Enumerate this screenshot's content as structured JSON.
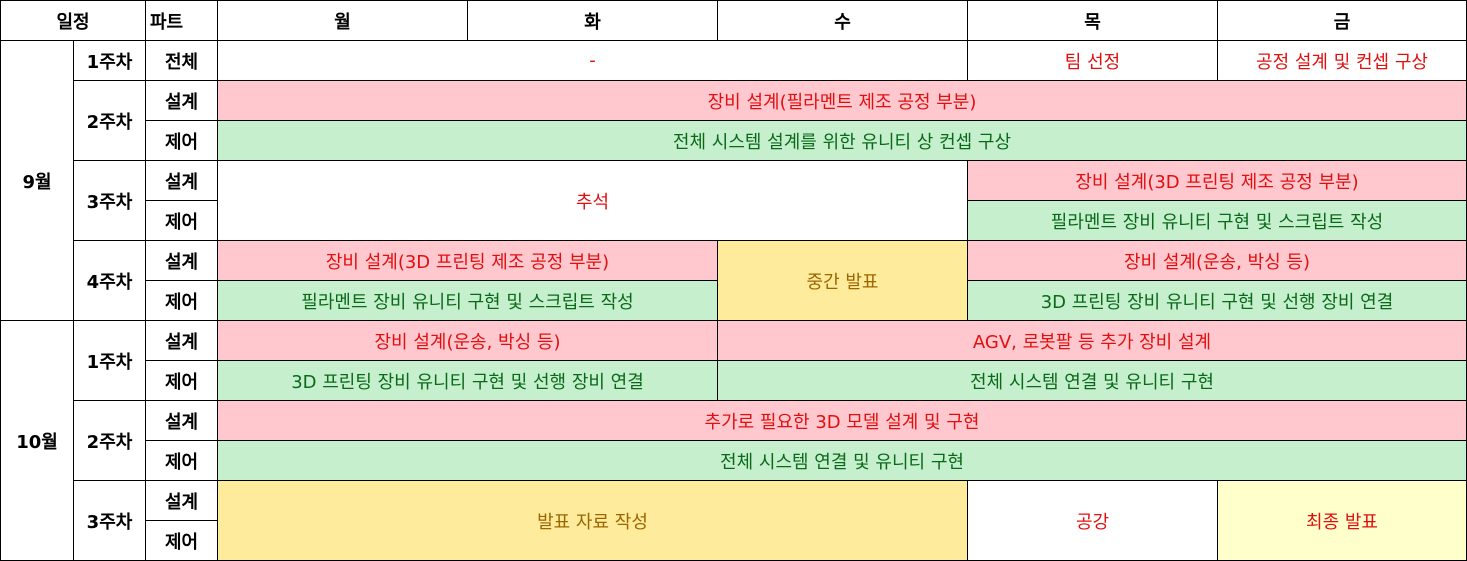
{
  "header": {
    "schedule": "일정",
    "part": "파트",
    "days": [
      "월",
      "화",
      "수",
      "목",
      "금"
    ]
  },
  "months": {
    "sep": "9월",
    "oct": "10월"
  },
  "weeks": {
    "w1": "1주차",
    "w2": "2주차",
    "w3": "3주차",
    "w4": "4주차"
  },
  "parts": {
    "all": "전체",
    "design": "설계",
    "control": "제어"
  },
  "sep": {
    "w1_dash": "-",
    "w1_thu": "팀 선정",
    "w1_fri": "공정 설계 및 컨셉 구상",
    "w2_design": "장비 설계(필라멘트 제조 공정 부분)",
    "w2_control": "전체 시스템 설계를 위한 유니티 상 컨셉 구상",
    "w3_holiday": "추석",
    "w3_design": "장비 설계(3D 프린팅 제조 공정 부분)",
    "w3_control": "필라멘트 장비 유니티 구현 및 스크립트 작성",
    "w4_design_a": "장비 설계(3D 프린팅 제조 공정 부분)",
    "w4_control_a": "필라멘트 장비 유니티 구현 및 스크립트 작성",
    "w4_mid": "중간 발표",
    "w4_design_b": "장비 설계(운송, 박싱 등)",
    "w4_control_b": "3D 프린팅 장비 유니티 구현 및 선행 장비 연결"
  },
  "oct": {
    "w1_design_a": "장비 설계(운송, 박싱 등)",
    "w1_design_b": "AGV, 로봇팔 등 추가 장비 설계",
    "w1_control_a": "3D 프린팅 장비 유니티 구현 및 선행 장비 연결",
    "w1_control_b": "전체 시스템 연결 및 유니티 구현",
    "w2_design": "추가로 필요한 3D 모델 설계 및 구현",
    "w2_control": "전체 시스템 연결 및 유니티 구현",
    "w3_prep": "발표 자료 작성",
    "w3_thu": "공강",
    "w3_final": "최종 발표"
  },
  "colors": {
    "design_bg": "#ffc7ce",
    "control_bg": "#c6efce",
    "presentation_bg": "#ffeb9c",
    "final_bg": "#ffffcc",
    "red_text": "#e01010",
    "green_text": "#0a6a1a"
  }
}
